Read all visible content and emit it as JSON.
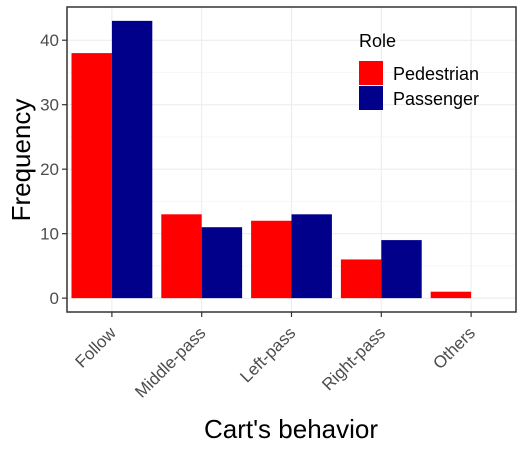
{
  "chart_data": {
    "type": "bar",
    "xlabel": "Cart's behavior",
    "ylabel": "Frequency",
    "categories": [
      "Follow",
      "Middle-pass",
      "Left-pass",
      "Right-pass",
      "Others"
    ],
    "series": [
      {
        "name": "Pedestrian",
        "color": "#ff0000",
        "values": [
          38,
          13,
          12,
          6,
          1
        ]
      },
      {
        "name": "Passenger",
        "color": "#00008b",
        "values": [
          43,
          11,
          13,
          9,
          0
        ]
      }
    ],
    "ylim": [
      -2.15,
      45.15
    ],
    "yticks": [
      0,
      10,
      20,
      30,
      40
    ],
    "grid": true,
    "legend": {
      "title": "Role",
      "position": "top-right"
    }
  }
}
